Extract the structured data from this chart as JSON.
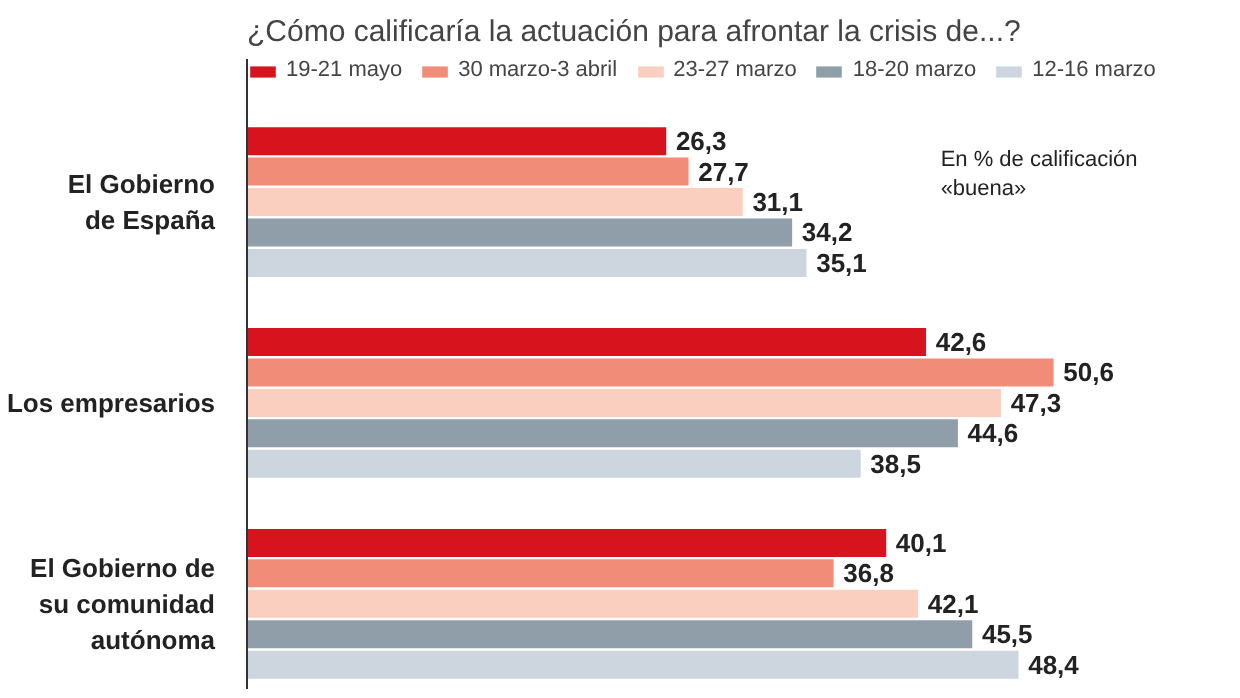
{
  "chart_data": {
    "type": "bar",
    "orientation": "horizontal",
    "title": "¿Cómo calificaría la actuación para afrontar la crisis de...?",
    "categories": [
      "El Gobierno\nde España",
      "Los empresarios",
      "El Gobierno de\nsu comunidad\nautónoma"
    ],
    "series": [
      {
        "name": "19-21 mayo",
        "color": "#d7141e",
        "values": [
          26.3,
          42.6,
          40.1
        ],
        "value_labels": [
          "26,3",
          "42,6",
          "40,1"
        ]
      },
      {
        "name": "30 marzo-3 abril",
        "color": "#f08c78",
        "values": [
          27.7,
          50.6,
          36.8
        ],
        "value_labels": [
          "27,7",
          "50,6",
          "36,8"
        ]
      },
      {
        "name": "23-27 marzo",
        "color": "#fbcfc0",
        "values": [
          31.1,
          47.3,
          42.1
        ],
        "value_labels": [
          "31,1",
          "47,3",
          "42,1"
        ]
      },
      {
        "name": "18-20 marzo",
        "color": "#8f9ea8",
        "values": [
          34.2,
          44.6,
          45.5
        ],
        "value_labels": [
          "34,2",
          "44,6",
          "45,5"
        ]
      },
      {
        "name": "12-16 marzo",
        "color": "#cdd5df",
        "values": [
          35.1,
          38.5,
          48.4
        ],
        "value_labels": [
          "35,1",
          "38,5",
          "48,4"
        ]
      }
    ],
    "annotations": [
      "En % de calificación «buena»"
    ],
    "legend": "top",
    "tick_labels": "y",
    "grid": false
  }
}
